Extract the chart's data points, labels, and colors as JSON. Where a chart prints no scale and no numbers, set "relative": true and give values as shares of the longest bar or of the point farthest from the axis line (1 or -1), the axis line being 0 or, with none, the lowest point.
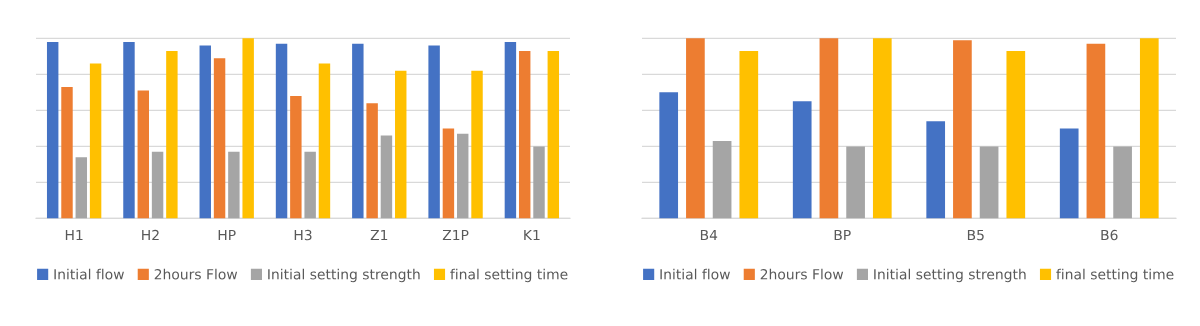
{
  "chart_data": [
    {
      "type": "bar",
      "relative": true,
      "grid": "y",
      "legend": "bottom",
      "categories": [
        "H1",
        "H2",
        "HP",
        "H3",
        "Z1",
        "Z1P",
        "K1"
      ],
      "series": [
        {
          "name": "Initial flow",
          "color": "#4472c4",
          "values": [
            0.98,
            0.98,
            0.96,
            0.97,
            0.97,
            0.96,
            0.98
          ]
        },
        {
          "name": "2hours Flow",
          "color": "#ed7d31",
          "values": [
            0.73,
            0.71,
            0.89,
            0.68,
            0.64,
            0.5,
            0.93
          ]
        },
        {
          "name": "Initial setting strength",
          "color": "#a5a5a5",
          "values": [
            0.34,
            0.37,
            0.37,
            0.37,
            0.46,
            0.47,
            0.4
          ]
        },
        {
          "name": "final setting time",
          "color": "#ffc000",
          "values": [
            0.86,
            0.93,
            1,
            0.86,
            0.82,
            0.82,
            0.93
          ]
        }
      ]
    },
    {
      "type": "bar",
      "relative": true,
      "grid": "y",
      "legend": "bottom",
      "categories": [
        "B4",
        "BP",
        "B5",
        "B6"
      ],
      "series": [
        {
          "name": "Initial flow",
          "color": "#4472c4",
          "values": [
            0.7,
            0.65,
            0.54,
            0.5
          ]
        },
        {
          "name": "2hours Flow",
          "color": "#ed7d31",
          "values": [
            1,
            1,
            0.99,
            0.97
          ]
        },
        {
          "name": "Initial setting strength",
          "color": "#a5a5a5",
          "values": [
            0.43,
            0.4,
            0.4,
            0.4
          ]
        },
        {
          "name": "final setting time",
          "color": "#ffc000",
          "values": [
            0.93,
            1,
            0.93,
            1
          ]
        }
      ]
    }
  ]
}
